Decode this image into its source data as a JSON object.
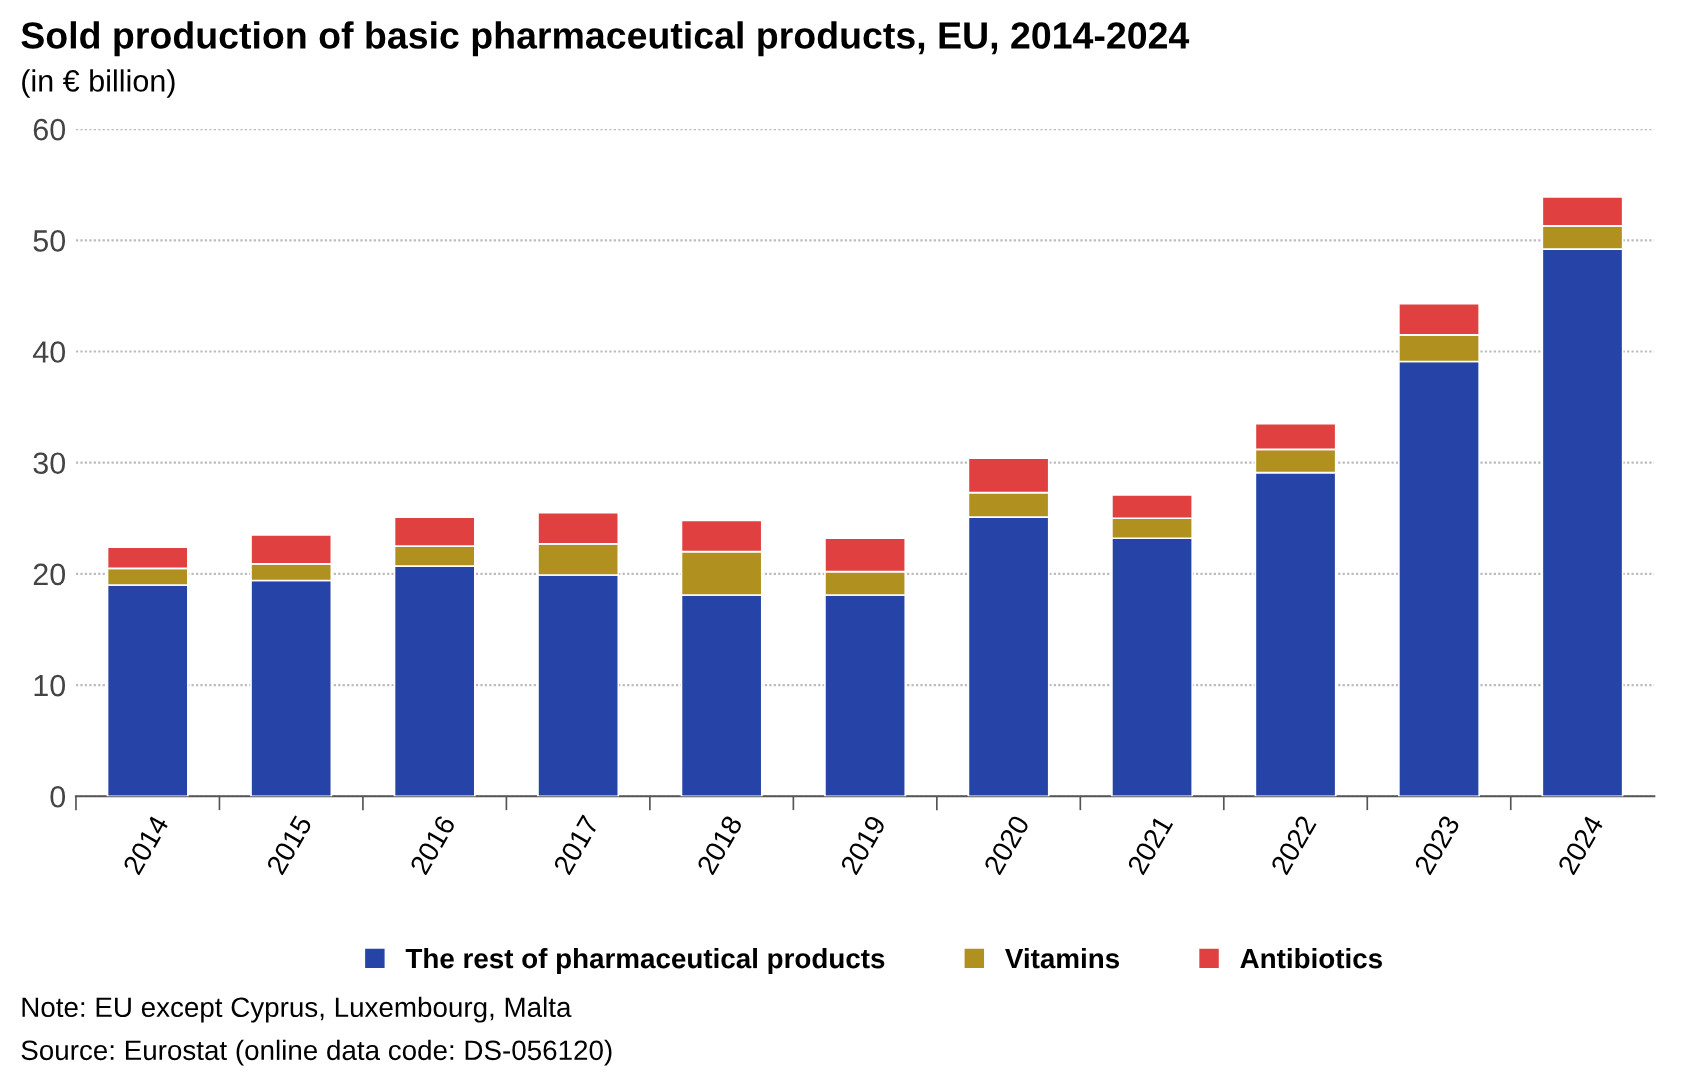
{
  "chart_data": {
    "type": "bar",
    "stacked": true,
    "title": "Sold production of basic pharmaceutical products, EU, 2014-2024",
    "subtitle": "(in € billion)",
    "categories": [
      "2014",
      "2015",
      "2016",
      "2017",
      "2018",
      "2019",
      "2020",
      "2021",
      "2022",
      "2023",
      "2024"
    ],
    "series": [
      {
        "name": "The rest of pharmaceutical products",
        "color": "#2644a7",
        "values": [
          19.0,
          19.4,
          20.7,
          19.9,
          18.1,
          18.1,
          25.1,
          23.2,
          29.1,
          39.1,
          49.2
        ]
      },
      {
        "name": "Vitamins",
        "color": "#b09120",
        "values": [
          1.5,
          1.5,
          1.8,
          2.8,
          3.9,
          2.1,
          2.2,
          1.8,
          2.1,
          2.4,
          2.1
        ]
      },
      {
        "name": "Antibiotics",
        "color": "#e04040",
        "values": [
          1.9,
          2.6,
          2.6,
          2.8,
          2.8,
          3.0,
          3.1,
          2.1,
          2.3,
          2.8,
          2.6
        ]
      }
    ],
    "ylim": [
      0,
      60
    ],
    "yticks": [
      0,
      10,
      20,
      30,
      40,
      50,
      60
    ],
    "grid": "y",
    "legend": "bottom",
    "annotations": [
      "Note: EU except Cyprus, Luxembourg, Malta",
      "Source: Eurostat (online data code: DS-056120)"
    ]
  }
}
